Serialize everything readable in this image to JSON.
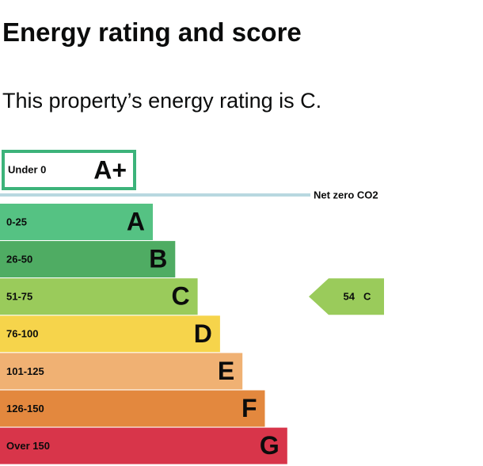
{
  "header": {
    "title": "Energy rating and score",
    "subtitle": "This property’s energy rating is C."
  },
  "top_band": {
    "range": "Under 0",
    "letter": "A+",
    "color": "#3cb37a"
  },
  "net_zero": {
    "label": "Net zero CO2",
    "color": "#b8d8e0"
  },
  "bands": [
    {
      "range": "0-25",
      "letter": "A",
      "color": "#55c283"
    },
    {
      "range": "26-50",
      "letter": "B",
      "color": "#4fac63"
    },
    {
      "range": "51-75",
      "letter": "C",
      "color": "#9acb5b"
    },
    {
      "range": "76-100",
      "letter": "D",
      "color": "#f6d44b"
    },
    {
      "range": "101-125",
      "letter": "E",
      "color": "#f0b173"
    },
    {
      "range": "126-150",
      "letter": "F",
      "color": "#e3883e"
    },
    {
      "range": "Over 150",
      "letter": "G",
      "color": "#d8354a"
    }
  ],
  "current": {
    "score": 54,
    "letter": "C",
    "color": "#9acb5b",
    "band": 2
  }
}
